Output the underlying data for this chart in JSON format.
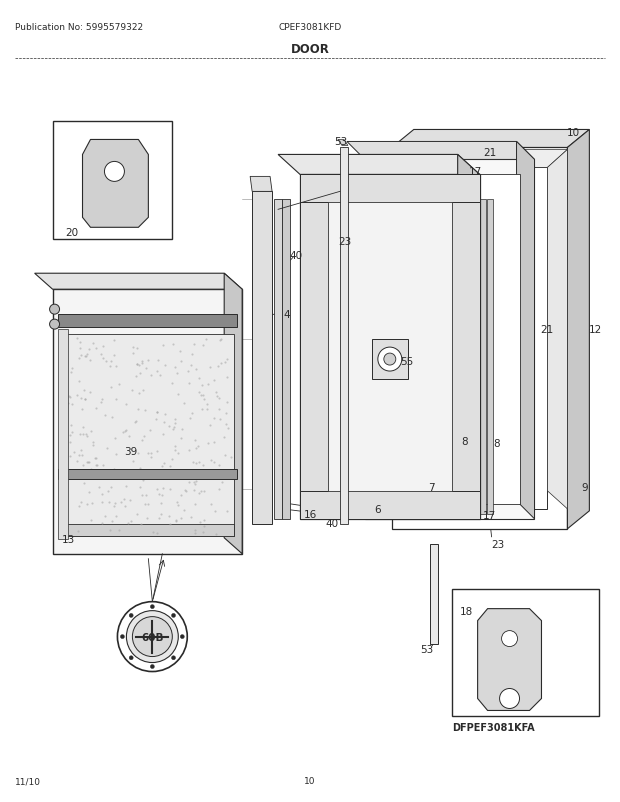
{
  "pub_no": "Publication No: 5995579322",
  "model": "CPEF3081KFD",
  "title": "DOOR",
  "footer_left": "11/10",
  "footer_center": "10",
  "alt_model": "DFPEF3081KFA",
  "bg_color": "#ffffff",
  "lc": "#2a2a2a",
  "fig_w": 6.2,
  "fig_h": 8.03,
  "dpi": 100
}
